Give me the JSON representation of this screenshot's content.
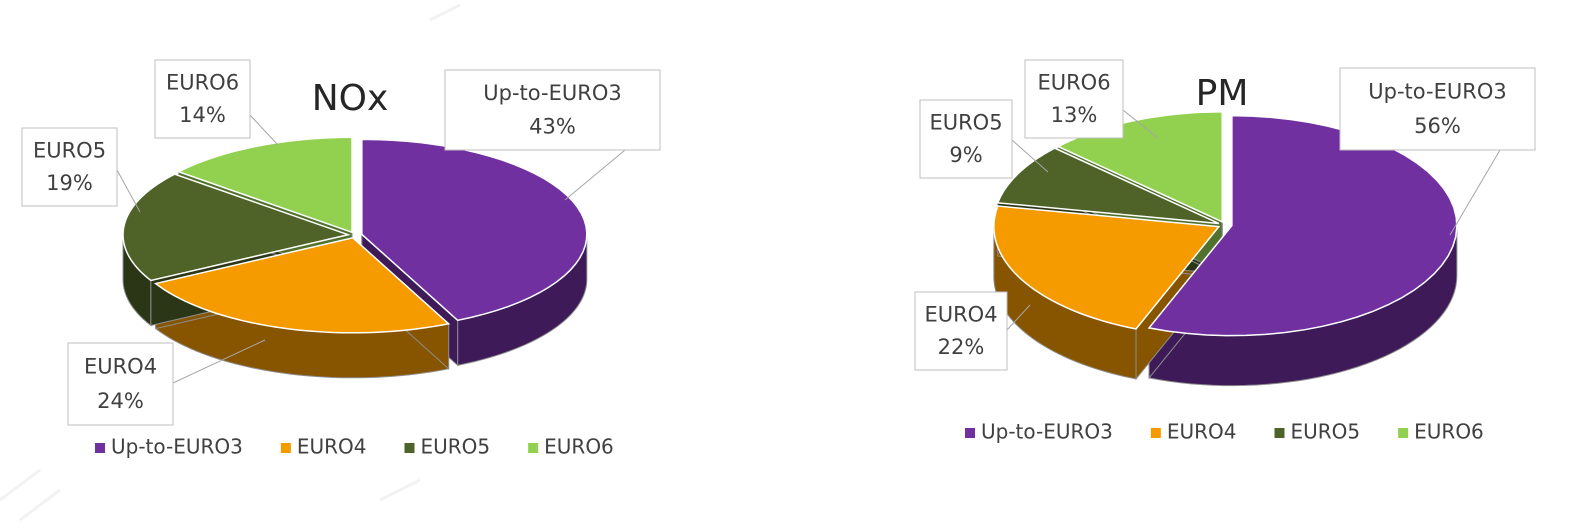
{
  "chart_data": [
    {
      "type": "pie",
      "title": "NOx",
      "categories": [
        "Up-to-EURO3",
        "EURO4",
        "EURO5",
        "EURO6"
      ],
      "values": [
        43,
        24,
        19,
        14
      ],
      "value_labels": [
        "43%",
        "24%",
        "19%",
        "14%"
      ],
      "colors": [
        "#7030a0",
        "#f59b00",
        "#4f6228",
        "#92d050"
      ],
      "legend": "bottom"
    },
    {
      "type": "pie",
      "title": "PM",
      "categories": [
        "Up-to-EURO3",
        "EURO4",
        "EURO5",
        "EURO6"
      ],
      "values": [
        56,
        22,
        9,
        13
      ],
      "value_labels": [
        "56%",
        "22%",
        "9%",
        "13%"
      ],
      "colors": [
        "#7030a0",
        "#f59b00",
        "#4f6228",
        "#92d050"
      ],
      "legend": "bottom"
    }
  ]
}
